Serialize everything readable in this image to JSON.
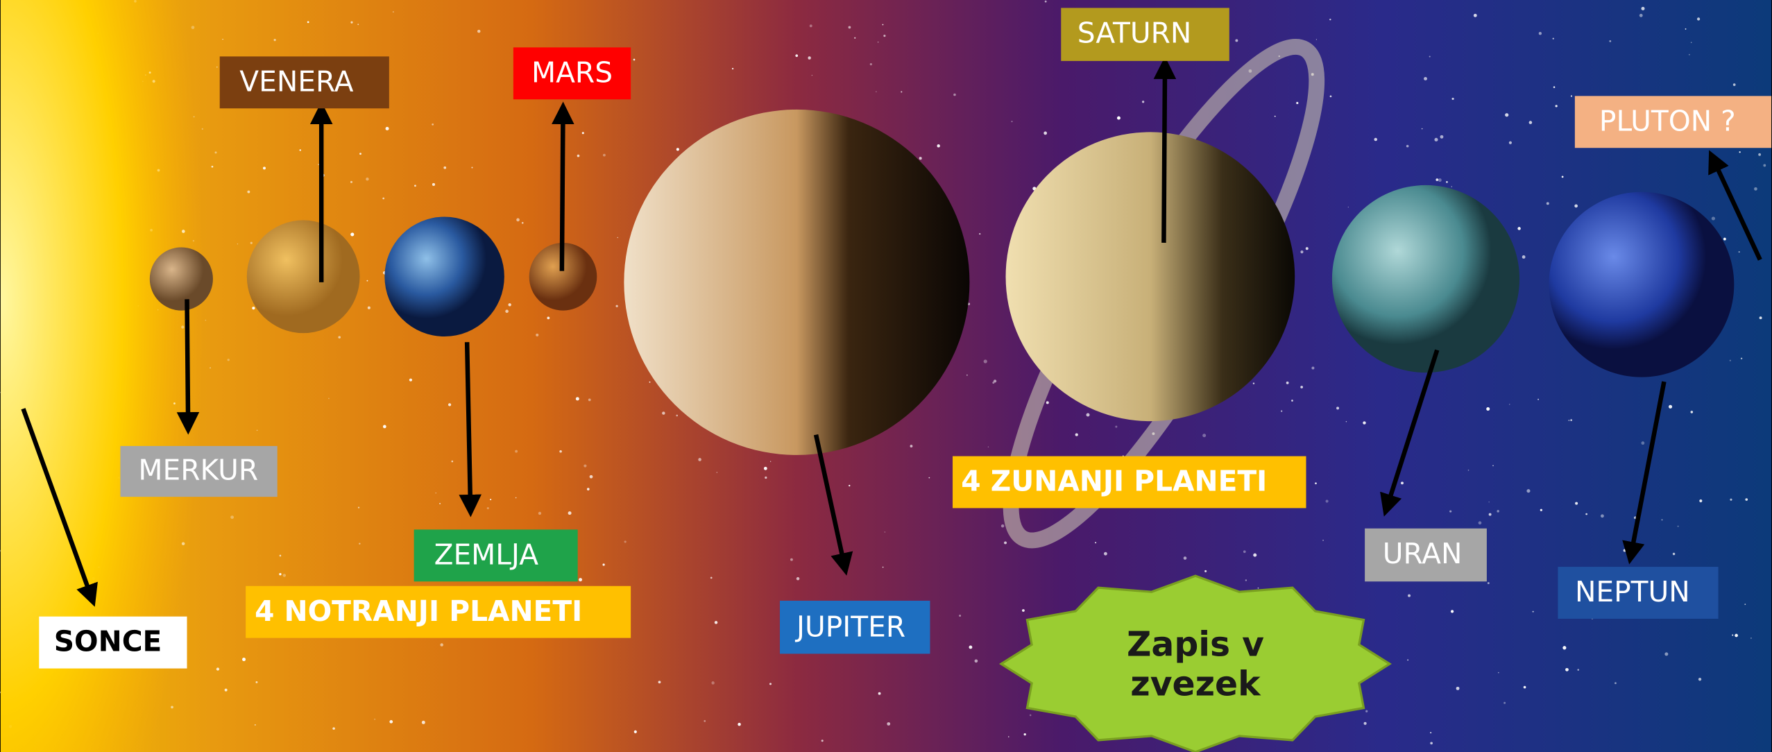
{
  "labels": {
    "sonce": "SONCE",
    "merkur": "MERKUR",
    "venera": "VENERA",
    "zemlja": "ZEMLJA",
    "mars": "MARS",
    "jupiter": "JUPITER",
    "saturn": "SATURN",
    "uran": "URAN",
    "neptun": "NEPTUN",
    "pluton": "PLUTON ?"
  },
  "groups": {
    "inner": "4 NOTRANJI PLANETI",
    "outer": "4 ZUNANJI PLANETI"
  },
  "button": [
    "Zapis v",
    "zvezek"
  ]
}
